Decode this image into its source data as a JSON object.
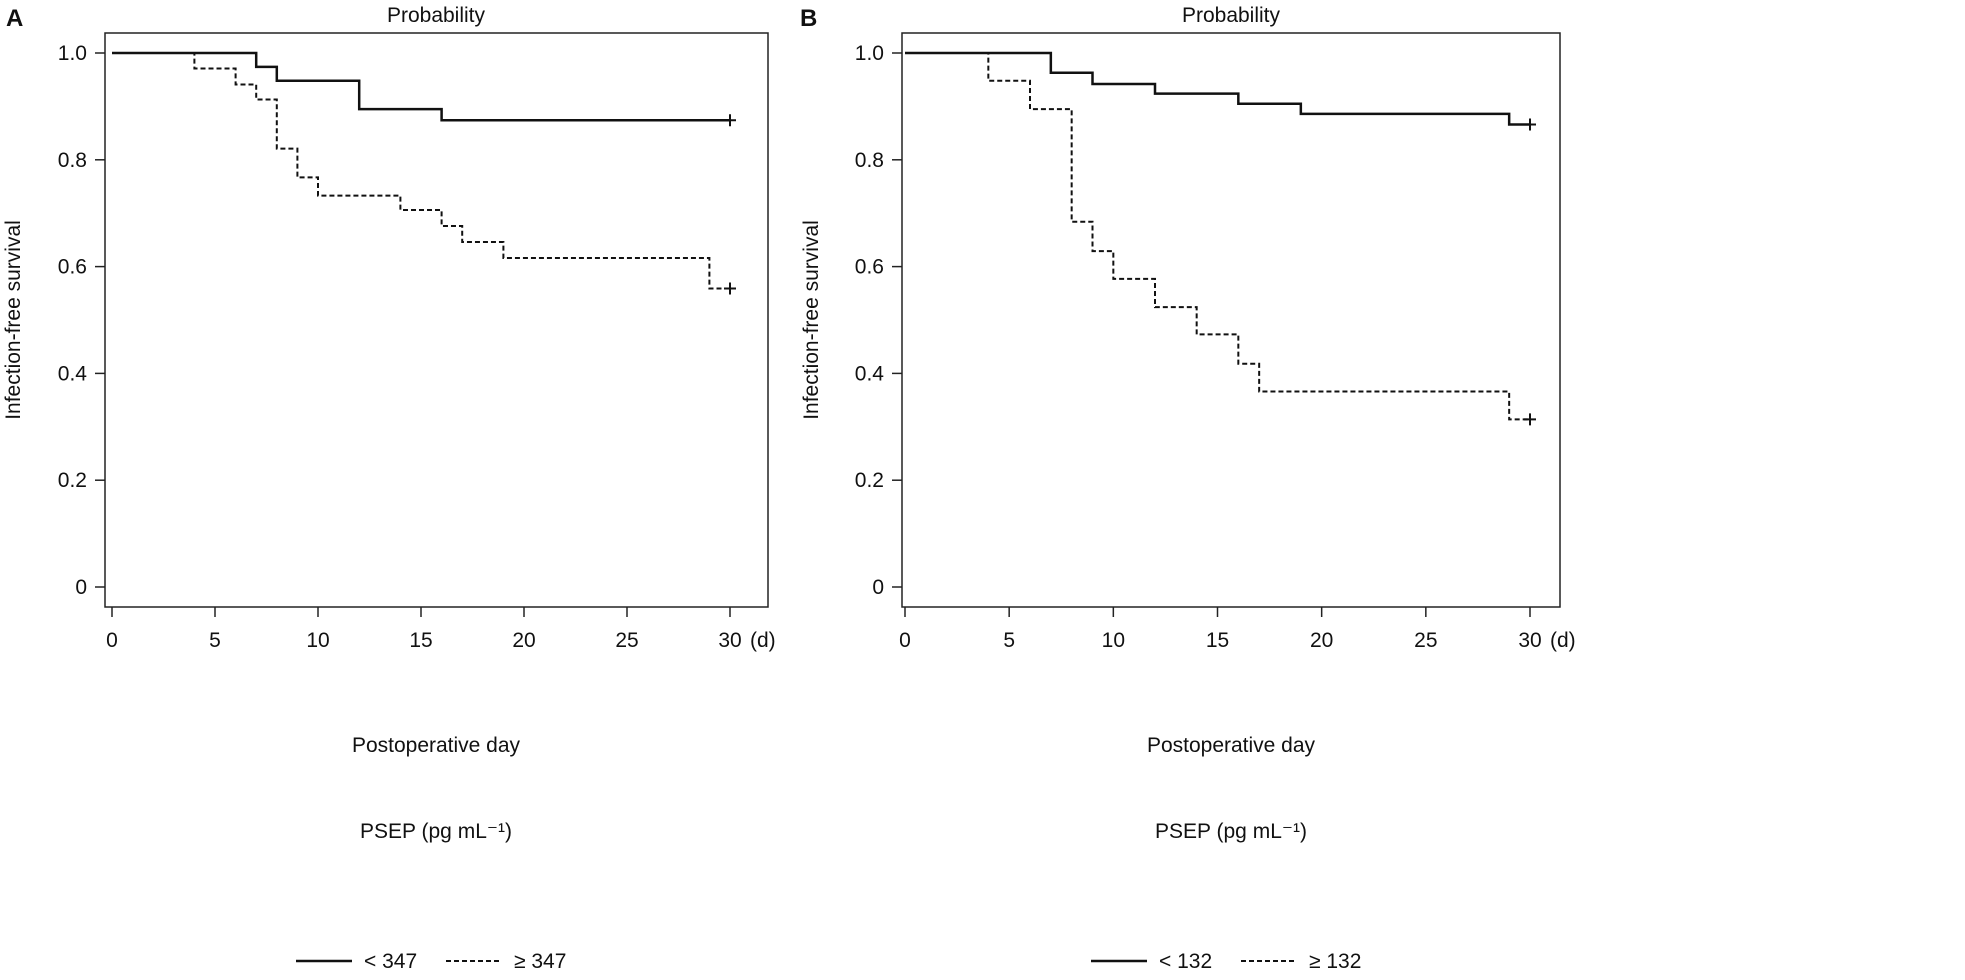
{
  "chart_data": [
    {
      "type": "line",
      "step": true,
      "panel_label": "A",
      "title": "Probability",
      "xlabel": "Postoperative day",
      "ylabel": "Infection-free survival",
      "xlim": [
        0,
        30
      ],
      "ylim": [
        0,
        1
      ],
      "x_ticks": [
        "0",
        "5",
        "10",
        "15",
        "20",
        "25",
        "30"
      ],
      "x_unit": "(d)",
      "y_ticks": [
        "0",
        "0.2",
        "0.4",
        "0.6",
        "0.8",
        "1.0"
      ],
      "legend_title": "PSEP (pg mL⁻¹)",
      "legend_placement": "bottom",
      "series": [
        {
          "name": "< 347",
          "style": "solid",
          "x": [
            0,
            7,
            8,
            12,
            16,
            30
          ],
          "y": [
            1.0,
            0.974,
            0.948,
            0.895,
            0.874,
            0.874
          ],
          "censored_at": [
            30
          ]
        },
        {
          "name": "≥ 347",
          "style": "dashed",
          "x": [
            0,
            4,
            6,
            7,
            8,
            9,
            10,
            14,
            16,
            17,
            19,
            29,
            30
          ],
          "y": [
            1.0,
            0.971,
            0.941,
            0.913,
            0.821,
            0.767,
            0.733,
            0.706,
            0.676,
            0.646,
            0.616,
            0.559,
            0.559
          ],
          "censored_at": [
            30
          ]
        }
      ]
    },
    {
      "type": "line",
      "step": true,
      "panel_label": "B",
      "title": "Probability",
      "xlabel": "Postoperative day",
      "ylabel": "Infection-free survival",
      "xlim": [
        0,
        30
      ],
      "ylim": [
        0,
        1
      ],
      "x_ticks": [
        "0",
        "5",
        "10",
        "15",
        "20",
        "25",
        "30"
      ],
      "x_unit": "(d)",
      "y_ticks": [
        "0",
        "0.2",
        "0.4",
        "0.6",
        "0.8",
        "1.0"
      ],
      "legend_title": "PSEP (pg mL⁻¹)",
      "legend_placement": "bottom",
      "series": [
        {
          "name": "< 132",
          "style": "solid",
          "x": [
            0,
            7,
            9,
            12,
            16,
            19,
            29,
            30
          ],
          "y": [
            1.0,
            0.963,
            0.942,
            0.924,
            0.905,
            0.886,
            0.866,
            0.866
          ],
          "censored_at": [
            30
          ]
        },
        {
          "name": "≥ 132",
          "style": "dashed",
          "x": [
            0,
            4,
            6,
            8,
            9,
            10,
            12,
            14,
            16,
            17,
            29,
            30
          ],
          "y": [
            1.0,
            0.948,
            0.895,
            0.684,
            0.629,
            0.577,
            0.524,
            0.473,
            0.418,
            0.366,
            0.314,
            0.314
          ],
          "censored_at": [
            30
          ]
        }
      ]
    }
  ]
}
